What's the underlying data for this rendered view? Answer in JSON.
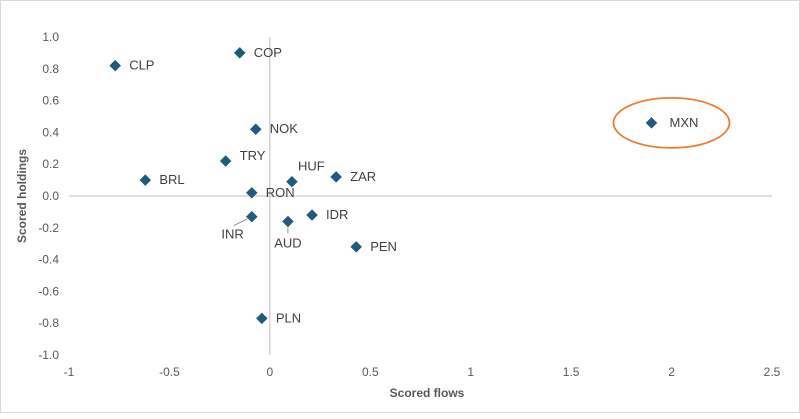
{
  "chart_data": {
    "type": "scatter",
    "title": "",
    "xlabel": "Scored flows",
    "ylabel": "Scored holdings",
    "xlim": [
      -1,
      2.5
    ],
    "ylim": [
      -1.0,
      1.0
    ],
    "x_ticks": [
      "-1",
      "-0.5",
      "0",
      "0.5",
      "1",
      "1.5",
      "2",
      "2.5"
    ],
    "y_ticks": [
      "1.0",
      "0.8",
      "0.6",
      "0.4",
      "0.2",
      "0.0",
      "-0.2",
      "-0.4",
      "-0.6",
      "-0.8",
      "-1.0"
    ],
    "grid": false,
    "marker_color": "#1f5c7a",
    "highlight_color": "#ed7d31",
    "highlighted": "MXN",
    "points": [
      {
        "label": "CLP",
        "x": -0.77,
        "y": 0.82
      },
      {
        "label": "COP",
        "x": -0.15,
        "y": 0.9
      },
      {
        "label": "NOK",
        "x": -0.07,
        "y": 0.42
      },
      {
        "label": "TRY",
        "x": -0.22,
        "y": 0.22
      },
      {
        "label": "BRL",
        "x": -0.62,
        "y": 0.1
      },
      {
        "label": "HUF",
        "x": 0.11,
        "y": 0.09
      },
      {
        "label": "ZAR",
        "x": 0.33,
        "y": 0.12
      },
      {
        "label": "RON",
        "x": -0.09,
        "y": 0.02
      },
      {
        "label": "INR",
        "x": -0.09,
        "y": -0.13
      },
      {
        "label": "AUD",
        "x": 0.09,
        "y": -0.16
      },
      {
        "label": "IDR",
        "x": 0.21,
        "y": -0.12
      },
      {
        "label": "PEN",
        "x": 0.43,
        "y": -0.32
      },
      {
        "label": "PLN",
        "x": -0.04,
        "y": -0.77
      },
      {
        "label": "MXN",
        "x": 1.9,
        "y": 0.46
      }
    ]
  }
}
